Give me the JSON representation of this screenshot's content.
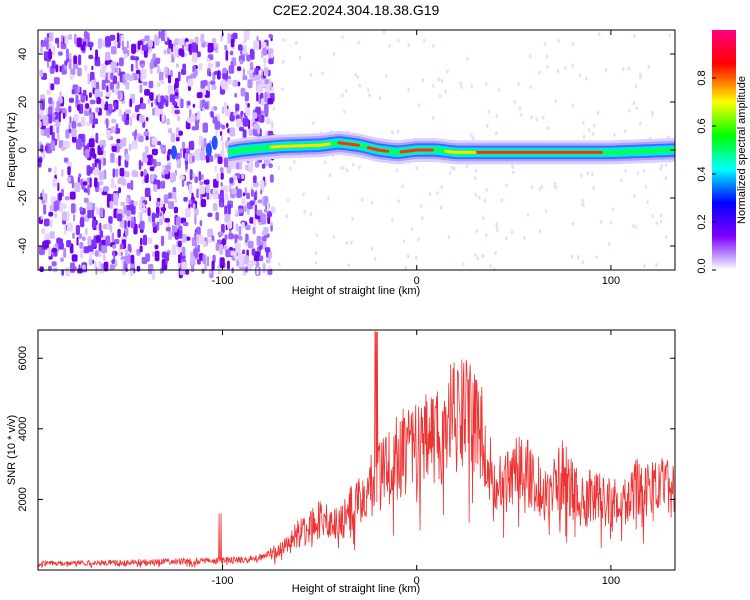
{
  "title": "C2E2.2024.304.18.38.G19",
  "chart_data": [
    {
      "type": "heatmap",
      "xlabel": "Height of straight line (km)",
      "ylabel": "Frequency (Hz)",
      "xlim": [
        -195,
        133
      ],
      "ylim": [
        -50,
        50
      ],
      "xticks": [
        -100,
        0,
        100
      ],
      "yticks": [
        -40,
        -20,
        0,
        20,
        40
      ],
      "colorbar": {
        "label": "Normalized spectral amplitude",
        "range": [
          0,
          1
        ],
        "ticks": [
          "0.0",
          "0.2",
          "0.4",
          "0.6",
          "0.8"
        ],
        "colors": [
          "#ffffff",
          "#7f00ff",
          "#0000ff",
          "#00ffff",
          "#00ff00",
          "#ffff00",
          "#ff0000",
          "#ff0080"
        ]
      },
      "ridge": {
        "description_points_x": [
          -97,
          -90,
          -70,
          -50,
          -40,
          -30,
          -20,
          -10,
          0,
          10,
          20,
          40,
          60,
          80,
          100,
          133
        ],
        "frequency_y": [
          -1,
          0,
          1.5,
          2,
          3,
          2,
          0,
          -1,
          0,
          0,
          -1,
          -1,
          -1,
          -1,
          -1,
          0
        ]
      }
    },
    {
      "type": "line",
      "xlabel": "Height of straight line (km)",
      "ylabel": "SNR (10 * v/v)",
      "xlim": [
        -195,
        133
      ],
      "ylim": [
        0,
        6800
      ],
      "xticks": [
        -100,
        0,
        100
      ],
      "yticks": [
        2000,
        4000,
        6000
      ],
      "color": "#ee3333",
      "envelope": {
        "x": [
          -195,
          -150,
          -110,
          -90,
          -80,
          -70,
          -60,
          -50,
          -40,
          -30,
          -20,
          -10,
          0,
          10,
          20,
          25,
          30,
          35,
          40,
          45,
          50,
          55,
          60,
          65,
          70,
          75,
          80,
          85,
          90,
          95,
          100,
          105,
          110,
          115,
          120,
          125,
          133
        ],
        "y": [
          250,
          300,
          350,
          400,
          500,
          800,
          1500,
          2000,
          1800,
          2800,
          3600,
          4400,
          5000,
          5400,
          6000,
          6200,
          5800,
          5000,
          3500,
          3200,
          3900,
          3800,
          3600,
          3000,
          3300,
          3700,
          3200,
          2600,
          3000,
          2800,
          2700,
          2500,
          2800,
          3400,
          3000,
          3200,
          3200
        ]
      }
    }
  ]
}
